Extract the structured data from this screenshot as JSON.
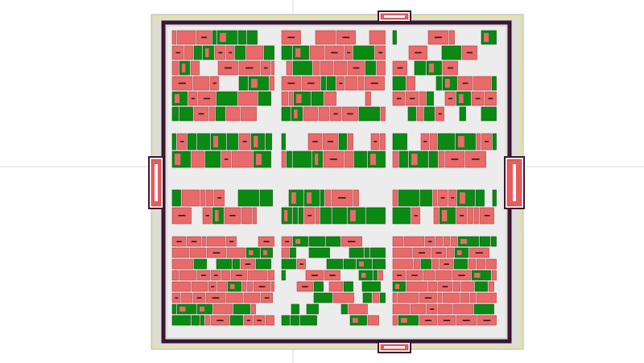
{
  "viewer": {
    "mode": "layout-floorplan",
    "crosshair_visible": true
  },
  "colors": {
    "background": "#ffffff",
    "crosshair": "#d9d9d9",
    "die_fill": "#dcdcdc",
    "die_border": "#b8b8b8",
    "ring_yellow": "#e8e870",
    "core_ring_outer": "#3a1630",
    "core_fill": "#ececec",
    "cell_red": "#e96a6a",
    "cell_red_edge": "#b33c3c",
    "cell_green": "#0b8a13",
    "cell_green_edge": "#064d0a",
    "pin_dark": "#2a1822",
    "pad_red": "#e85c5c",
    "pad_frame": "#3a1630"
  },
  "io_pads": [
    {
      "name": "pad-top",
      "side": "top"
    },
    {
      "name": "pad-bottom",
      "side": "bottom"
    },
    {
      "name": "pad-left",
      "side": "left"
    },
    {
      "name": "pad-right",
      "side": "right"
    }
  ],
  "cell_clusters": [
    {
      "name": "cluster-1-1",
      "row": 1,
      "col": 1,
      "density": 0.9,
      "green_ratio": 0.35
    },
    {
      "name": "cluster-1-2",
      "row": 1,
      "col": 2,
      "density": 0.85,
      "green_ratio": 0.3
    },
    {
      "name": "cluster-1-3",
      "row": 1,
      "col": 3,
      "density": 0.8,
      "green_ratio": 0.55
    },
    {
      "name": "cluster-2-1",
      "row": 2,
      "col": 1,
      "density": 0.85,
      "green_ratio": 0.45
    },
    {
      "name": "cluster-2-2",
      "row": 2,
      "col": 2,
      "density": 0.85,
      "green_ratio": 0.5
    },
    {
      "name": "cluster-2-3",
      "row": 2,
      "col": 3,
      "density": 0.85,
      "green_ratio": 0.55
    },
    {
      "name": "cluster-3-1",
      "row": 3,
      "col": 1,
      "density": 0.85,
      "green_ratio": 0.45
    },
    {
      "name": "cluster-3-2",
      "row": 3,
      "col": 2,
      "density": 0.85,
      "green_ratio": 0.65
    },
    {
      "name": "cluster-3-3",
      "row": 3,
      "col": 3,
      "density": 0.85,
      "green_ratio": 0.4
    },
    {
      "name": "cluster-4-1",
      "row": 4,
      "col": 1,
      "density": 0.95,
      "green_ratio": 0.3
    },
    {
      "name": "cluster-4-2",
      "row": 4,
      "col": 2,
      "density": 0.8,
      "green_ratio": 0.6
    },
    {
      "name": "cluster-4-3",
      "row": 4,
      "col": 3,
      "density": 0.9,
      "green_ratio": 0.2
    }
  ]
}
